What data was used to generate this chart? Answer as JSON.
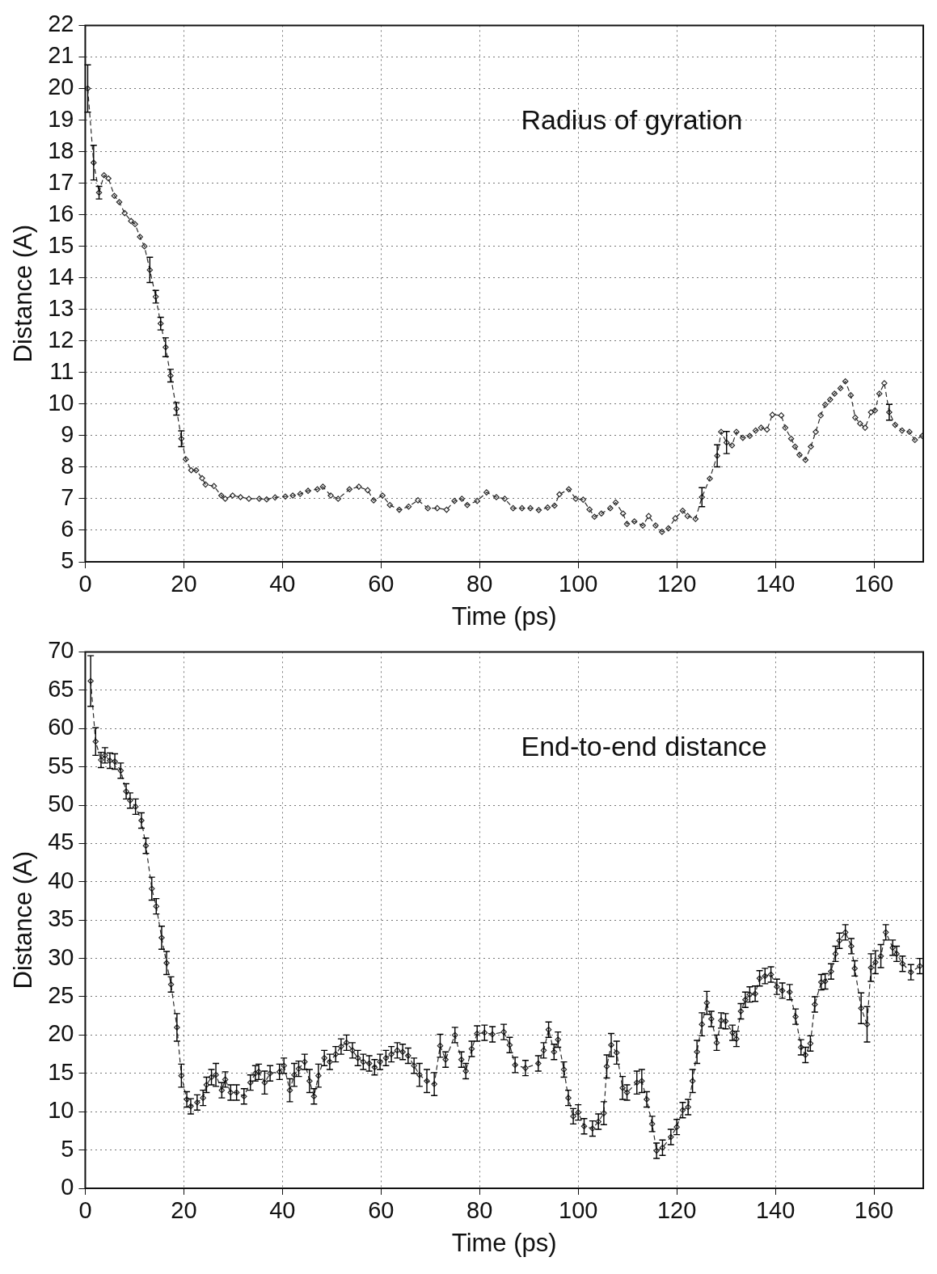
{
  "chart_data": [
    {
      "type": "line",
      "xlabel": "Time (ps)",
      "ylabel": "Distance (A)",
      "annotations": [
        "Radius of gyration"
      ],
      "color": "#2a2a2a",
      "marker": "diamond",
      "line_style": "dashed",
      "grid": true,
      "xlim": [
        0,
        170
      ],
      "xticks": [
        0,
        20,
        40,
        60,
        80,
        100,
        120,
        140,
        160
      ],
      "ylim": [
        5,
        22
      ],
      "yticks": [
        5,
        6,
        7,
        8,
        9,
        10,
        11,
        12,
        13,
        14,
        15,
        16,
        17,
        18,
        19,
        20,
        21,
        22
      ],
      "x": [
        0.5,
        1.7,
        2.8,
        3.8,
        4.7,
        5.9,
        6.9,
        8,
        9.3,
        10.1,
        11.1,
        12,
        13.1,
        14.3,
        15.3,
        16.3,
        17.3,
        18.5,
        19.5,
        20.4,
        21.5,
        22.5,
        23.7,
        24.4,
        26.1,
        27.6,
        28.4,
        29.9,
        31.5,
        33.2,
        35.3,
        36.8,
        38.5,
        40.6,
        42.1,
        43.6,
        45.2,
        47.1,
        48.2,
        49.8,
        51.3,
        53.6,
        55.5,
        57.3,
        58.5,
        60.3,
        61.8,
        63.7,
        65.6,
        67.5,
        69.5,
        71.4,
        73.3,
        74.9,
        76.4,
        77.5,
        79.5,
        81.4,
        83.4,
        85.1,
        86.8,
        88.6,
        90.3,
        92,
        93.8,
        95.2,
        96.2,
        98.1,
        99.5,
        101,
        102.3,
        103.3,
        104.7,
        106.5,
        107.6,
        109.1,
        109.9,
        111.4,
        113.1,
        114.3,
        115.7,
        117,
        118.3,
        119.7,
        121.2,
        122.2,
        123.8,
        125.1,
        126.7,
        128.2,
        129,
        130.1,
        131.2,
        132.1,
        133.4,
        134.8,
        136,
        137.1,
        138.3,
        139.4,
        141.2,
        142,
        143.2,
        144,
        144.9,
        146.1,
        147.2,
        148.2,
        149.2,
        150.1,
        151.1,
        152,
        153.2,
        154.2,
        155.3,
        156.2,
        157.2,
        158.2,
        159.4,
        160.2,
        161.1,
        162.1,
        163.1,
        164.3,
        165.7,
        167.2,
        168.3,
        169.8
      ],
      "values": [
        20.0,
        17.65,
        16.7,
        17.25,
        17.15,
        16.6,
        16.4,
        16.05,
        15.8,
        15.7,
        15.3,
        15.0,
        14.25,
        13.4,
        12.55,
        11.8,
        10.9,
        9.85,
        8.9,
        8.25,
        7.9,
        7.9,
        7.65,
        7.45,
        7.4,
        7.1,
        7.0,
        7.1,
        7.05,
        7.0,
        7.0,
        6.98,
        7.04,
        7.07,
        7.1,
        7.15,
        7.25,
        7.3,
        7.38,
        7.1,
        7.0,
        7.3,
        7.38,
        7.27,
        6.95,
        7.1,
        6.8,
        6.65,
        6.75,
        6.95,
        6.7,
        6.7,
        6.65,
        6.93,
        7.0,
        6.8,
        6.93,
        7.2,
        7.05,
        7.0,
        6.7,
        6.7,
        6.7,
        6.64,
        6.72,
        6.78,
        7.14,
        7.3,
        7.0,
        6.97,
        6.66,
        6.43,
        6.53,
        6.7,
        6.88,
        6.53,
        6.2,
        6.28,
        6.15,
        6.45,
        6.15,
        5.95,
        6.06,
        6.38,
        6.62,
        6.45,
        6.36,
        7.05,
        7.64,
        8.36,
        9.12,
        8.78,
        8.69,
        9.12,
        8.93,
        8.99,
        9.16,
        9.25,
        9.19,
        9.66,
        9.64,
        9.25,
        8.9,
        8.65,
        8.39,
        8.23,
        8.65,
        9.12,
        9.64,
        9.98,
        10.14,
        10.33,
        10.5,
        10.72,
        10.28,
        9.57,
        9.38,
        9.25,
        9.74,
        9.8,
        10.33,
        10.66,
        9.74,
        9.34,
        9.16,
        9.12,
        8.86,
        8.99
      ],
      "errors": [
        0.75,
        0.55,
        0.2,
        null,
        null,
        null,
        null,
        null,
        null,
        null,
        null,
        null,
        0.4,
        0.2,
        0.2,
        0.3,
        0.2,
        0.2,
        0.25,
        null,
        null,
        null,
        null,
        null,
        null,
        null,
        null,
        null,
        null,
        null,
        null,
        null,
        null,
        null,
        null,
        null,
        null,
        null,
        null,
        null,
        null,
        null,
        null,
        null,
        null,
        null,
        null,
        null,
        null,
        null,
        null,
        null,
        null,
        null,
        null,
        null,
        null,
        null,
        null,
        null,
        null,
        null,
        null,
        null,
        null,
        null,
        null,
        null,
        null,
        null,
        null,
        null,
        null,
        null,
        null,
        null,
        null,
        null,
        null,
        null,
        null,
        null,
        null,
        null,
        null,
        null,
        null,
        0.3,
        null,
        0.35,
        null,
        0.35,
        null,
        null,
        null,
        null,
        null,
        null,
        null,
        null,
        null,
        null,
        null,
        null,
        null,
        null,
        null,
        null,
        null,
        null,
        null,
        null,
        null,
        null,
        null,
        null,
        null,
        null,
        null,
        null,
        null,
        null,
        0.25,
        null,
        null,
        null,
        null,
        null
      ]
    },
    {
      "type": "line",
      "xlabel": "Time (ps)",
      "ylabel": "Distance (A)",
      "annotations": [
        "End-to-end distance"
      ],
      "color": "#2a2a2a",
      "marker": "diamond",
      "line_style": "dashed",
      "grid": true,
      "xlim": [
        0,
        170
      ],
      "xticks": [
        0,
        20,
        40,
        60,
        80,
        100,
        120,
        140,
        160
      ],
      "ylim": [
        0,
        70
      ],
      "yticks": [
        0,
        5,
        10,
        15,
        20,
        25,
        30,
        35,
        40,
        45,
        50,
        55,
        60,
        65,
        70
      ],
      "x": [
        1.1,
        2.1,
        3.2,
        4,
        5,
        6,
        7.2,
        8.3,
        9.1,
        10.2,
        11.4,
        12.3,
        13.5,
        14.4,
        15.5,
        16.5,
        17.4,
        18.6,
        19.5,
        20.6,
        21.4,
        22.7,
        23.9,
        24.6,
        25.6,
        26.5,
        27.7,
        28.4,
        29.5,
        30.7,
        32.2,
        33.5,
        34.5,
        35.2,
        36.4,
        37.5,
        39.4,
        40.3,
        41.5,
        42.4,
        43.3,
        44.5,
        45.5,
        46.4,
        47.3,
        48.5,
        49.6,
        50.8,
        51.9,
        53,
        54.2,
        55.3,
        56.4,
        57.6,
        58.7,
        59.8,
        61,
        62.1,
        63.3,
        64.4,
        65.5,
        66.7,
        67.8,
        69.3,
        70.8,
        72,
        73.1,
        75,
        76.3,
        77.2,
        78.4,
        79.5,
        81,
        82.6,
        84.9,
        86.1,
        87.2,
        89.3,
        91.9,
        93,
        94,
        95.1,
        95.9,
        97.1,
        98,
        99,
        100,
        101.2,
        102.9,
        104.1,
        105.2,
        105.8,
        106.7,
        107.8,
        109,
        109.9,
        111.9,
        112.9,
        113.9,
        115,
        115.9,
        117.1,
        118.8,
        120,
        121.2,
        122.3,
        123.2,
        124.1,
        125.1,
        126.1,
        127,
        128.1,
        129,
        129.9,
        131.3,
        132.1,
        133,
        133.9,
        134.8,
        135.9,
        136.8,
        137.9,
        139.1,
        140.3,
        141.4,
        142.9,
        144.1,
        145.2,
        146.1,
        147.1,
        148,
        149.3,
        150.1,
        151.3,
        152.2,
        153,
        154.2,
        155.4,
        156.1,
        157.4,
        158.6,
        159.4,
        160.3,
        161.4,
        162.4,
        163.8,
        164.6,
        165.8,
        167.5,
        169.3
      ],
      "values": [
        66.2,
        58.3,
        55.9,
        56.5,
        55.8,
        55.7,
        54.5,
        51.8,
        50.6,
        49.8,
        48,
        44.7,
        39.1,
        36.8,
        32.7,
        29.4,
        26.6,
        21,
        14.7,
        11.6,
        10.7,
        11.2,
        11.8,
        13.5,
        14.5,
        14.8,
        12.8,
        14.2,
        12.5,
        12.5,
        12,
        13.8,
        15,
        15.2,
        13.8,
        15,
        15.2,
        16,
        12.8,
        14.8,
        15.6,
        16.5,
        14,
        12,
        14.7,
        17,
        16.5,
        17.5,
        18.5,
        19,
        18,
        17,
        16.5,
        16.3,
        15.8,
        16.5,
        17,
        17.5,
        18,
        17.8,
        17.3,
        16,
        14.8,
        14,
        13.6,
        18.6,
        16.8,
        20,
        16.8,
        15.3,
        18.2,
        20.2,
        20.3,
        20.1,
        20.4,
        18.7,
        16.1,
        15.7,
        16.3,
        18,
        20.7,
        17.8,
        19.4,
        15.5,
        11.8,
        9.4,
        9.9,
        8.1,
        7.8,
        8.7,
        9.8,
        15.9,
        18.7,
        17.7,
        13.1,
        12.5,
        13.8,
        14,
        11.6,
        8.4,
        4.9,
        5.3,
        6.7,
        8,
        10.2,
        10.6,
        14,
        17.8,
        21.4,
        24.2,
        22.1,
        19,
        21.9,
        21.8,
        20.3,
        19.5,
        23.1,
        24.6,
        25.3,
        25.4,
        27.4,
        27.7,
        27.9,
        26.3,
        25.8,
        25.6,
        22.4,
        18.4,
        17.4,
        18.9,
        24,
        26.9,
        27,
        28.3,
        30.6,
        32.3,
        33.4,
        31.6,
        28.7,
        23.5,
        21.4,
        28.8,
        29.5,
        30.3,
        33.4,
        31.4,
        30.6,
        29.3,
        28.2,
        29
      ],
      "errors": [
        3.3,
        1.8,
        1,
        1,
        1,
        1,
        1,
        1,
        1,
        1,
        1,
        1,
        1.5,
        1,
        1.5,
        1.5,
        1,
        1.8,
        1.5,
        1,
        1,
        1,
        1,
        1,
        1,
        1.5,
        1,
        1,
        1,
        1,
        1,
        1,
        1,
        1,
        1.5,
        1,
        1,
        1,
        1.5,
        1.5,
        1,
        1,
        1.5,
        1,
        1.5,
        1,
        1,
        1,
        1,
        1,
        1,
        1,
        1,
        1,
        1,
        1,
        1,
        1,
        1,
        1,
        1,
        1,
        1.5,
        1.5,
        1.5,
        1.5,
        1,
        1,
        1,
        1,
        1,
        1,
        1,
        1,
        1,
        1,
        1,
        1,
        1,
        1,
        1,
        1,
        1,
        1,
        1,
        1,
        1,
        1,
        1,
        1,
        1.5,
        1.5,
        1.5,
        1.5,
        1.5,
        1,
        1.5,
        1.5,
        1,
        1,
        1,
        1,
        1,
        1,
        1,
        1,
        1.5,
        1.5,
        1.5,
        1.5,
        1,
        1,
        1,
        1,
        1,
        1,
        1,
        1,
        1,
        1,
        1,
        1,
        1,
        1,
        1,
        1,
        1,
        1,
        1,
        1,
        1,
        1,
        1,
        1,
        1,
        1,
        1,
        1,
        1,
        2,
        2.3,
        1.8,
        1.5,
        1.5,
        1,
        1,
        1,
        1,
        1,
        1
      ]
    }
  ]
}
